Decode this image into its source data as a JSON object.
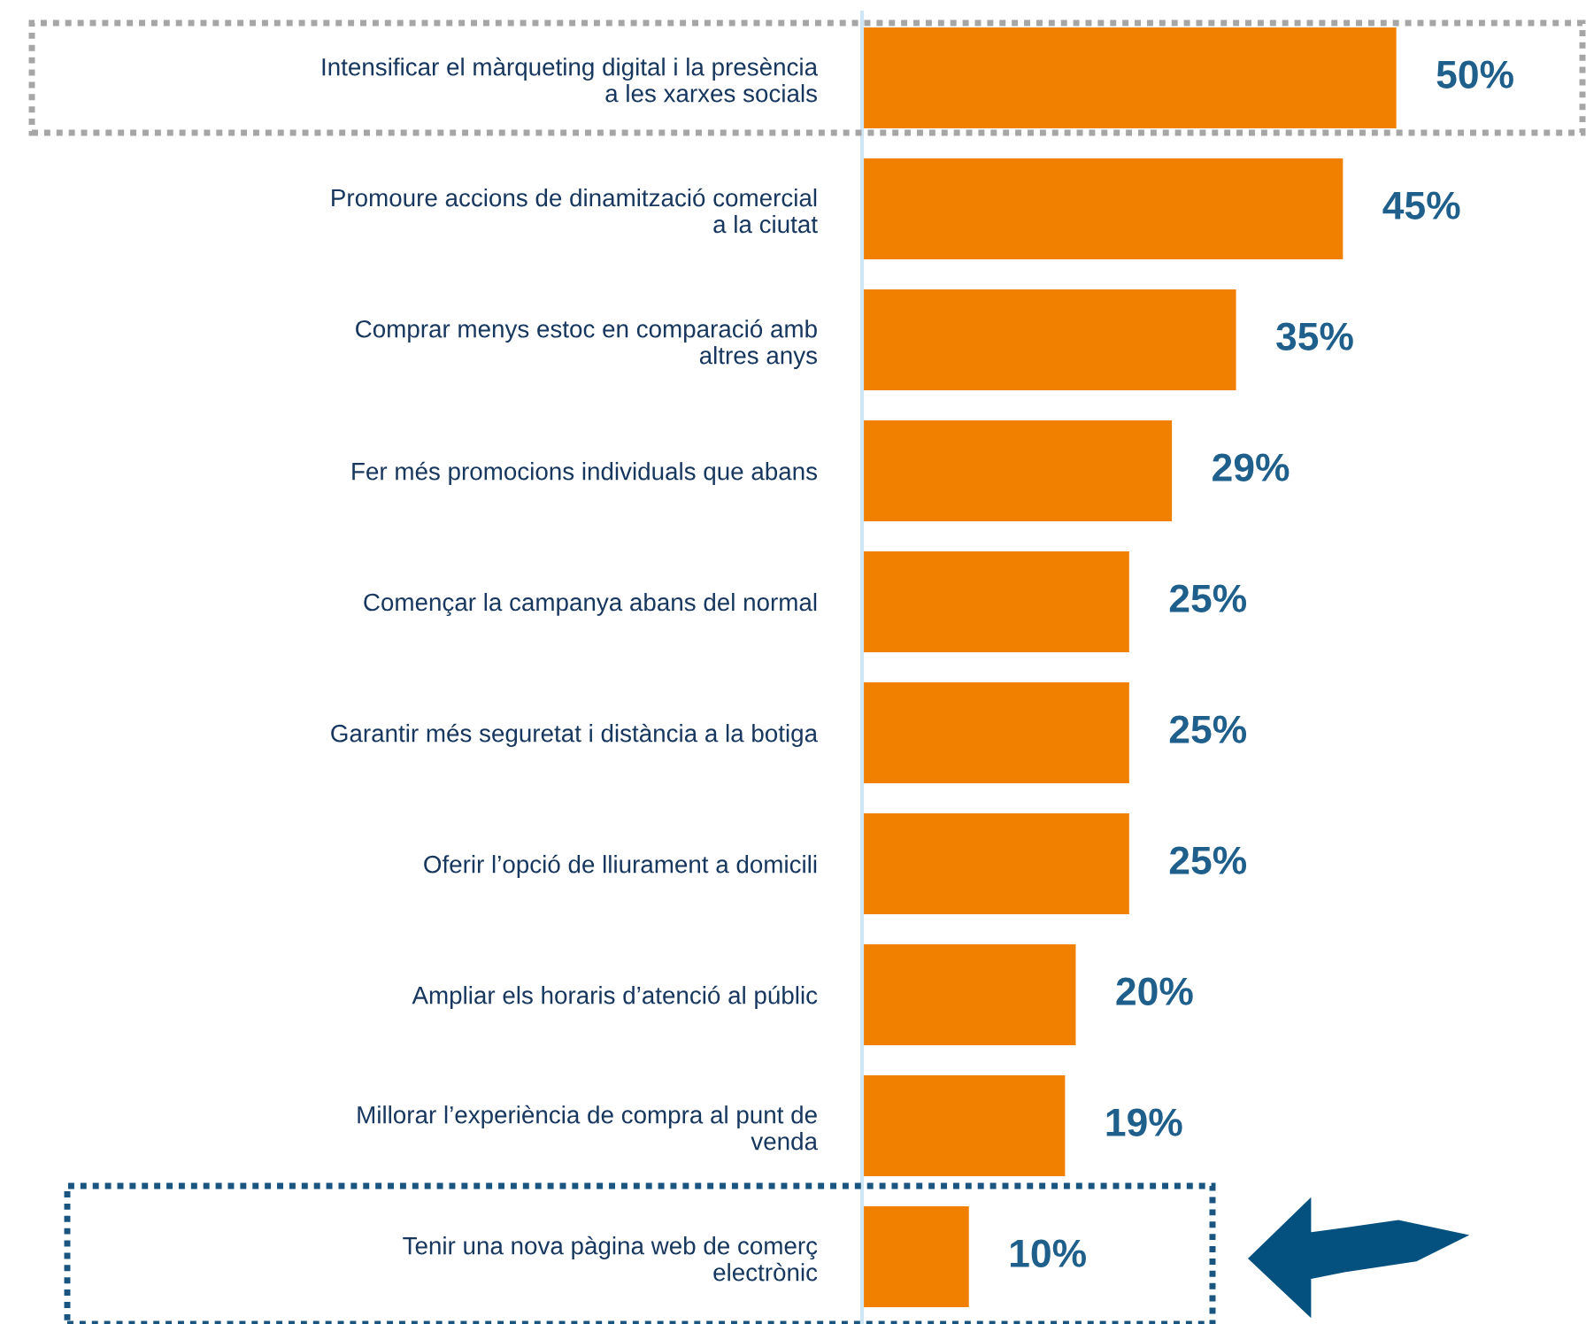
{
  "chart_data": {
    "type": "bar",
    "orientation": "horizontal",
    "categories": [
      "Intensificar el màrqueting digital i la presència\na les xarxes socials",
      "Promoure accions de dinamització comercial\na la ciutat",
      "Comprar menys estoc en comparació amb\naltres anys",
      "Fer més promocions individuals que abans",
      "Començar la campanya abans del normal",
      "Garantir més seguretat i distància a la botiga",
      "Oferir l’opció de lliurament a domicili",
      "Ampliar els horaris d’atenció al públic",
      "Millorar l’experiència de compra al punt de\nvenda",
      "Tenir una nova pàgina web de comerç\nelectrònic"
    ],
    "values": [
      50,
      45,
      35,
      29,
      25,
      25,
      25,
      20,
      19,
      10
    ],
    "value_labels": [
      "50%",
      "45%",
      "35%",
      "29%",
      "25%",
      "25%",
      "25%",
      "20%",
      "19%",
      "10%"
    ],
    "color": "#f28000"
  }
}
